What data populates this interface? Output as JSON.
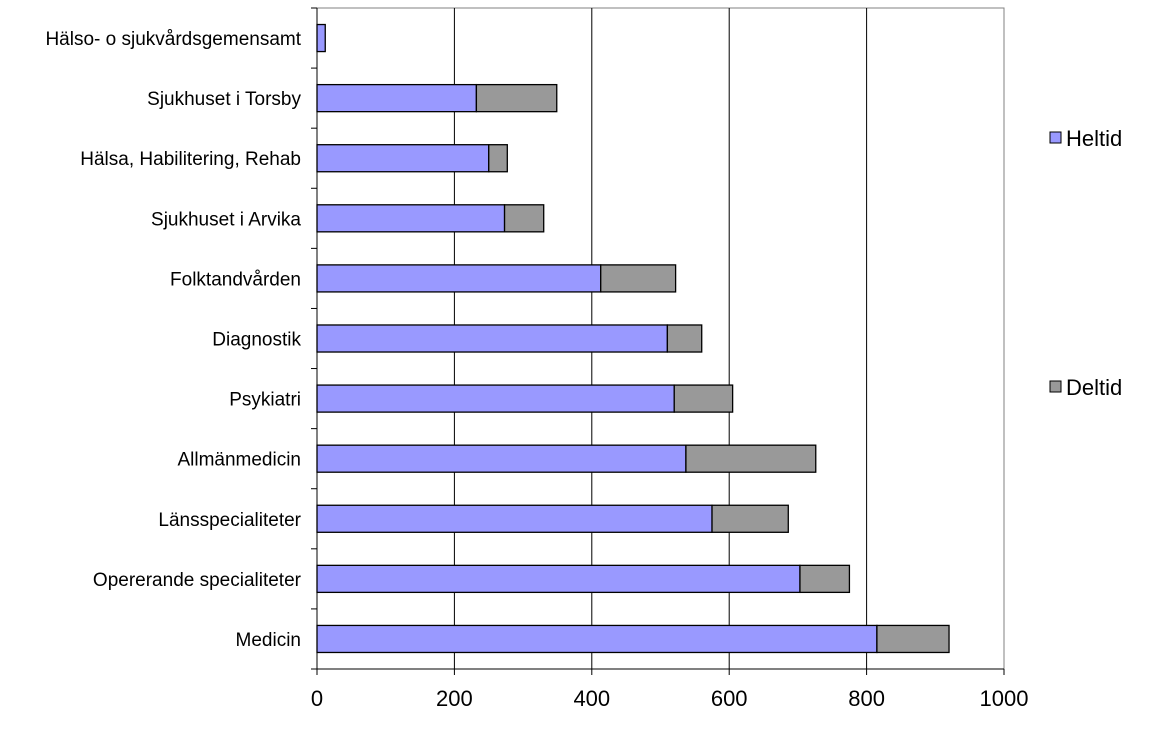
{
  "chart_data": {
    "type": "bar",
    "orientation": "horizontal",
    "stacked": true,
    "title": "",
    "xlabel": "",
    "ylabel": "",
    "categories": [
      "Hälso- o sjukvårdsgemensamt",
      "Sjukhuset i Torsby",
      "Hälsa, Habilitering, Rehab",
      "Sjukhuset i Arvika",
      "Folktandvården",
      "Diagnostik",
      "Psykiatri",
      "Allmänmedicin",
      "Länsspecialiteter",
      "Opererande specialiteter",
      "Medicin"
    ],
    "series": [
      {
        "name": "Heltid",
        "color": "#9999ff",
        "values": [
          12,
          232,
          250,
          273,
          413,
          510,
          520,
          537,
          575,
          703,
          815
        ]
      },
      {
        "name": "Deltid",
        "color": "#999999",
        "values": [
          0,
          117,
          27,
          57,
          109,
          50,
          85,
          189,
          111,
          72,
          105
        ]
      }
    ],
    "xlim": [
      0,
      1000
    ],
    "x_ticks": [
      "0",
      "200",
      "400",
      "600",
      "800",
      "1000"
    ],
    "grid": "vertical",
    "legend_position": "right"
  }
}
